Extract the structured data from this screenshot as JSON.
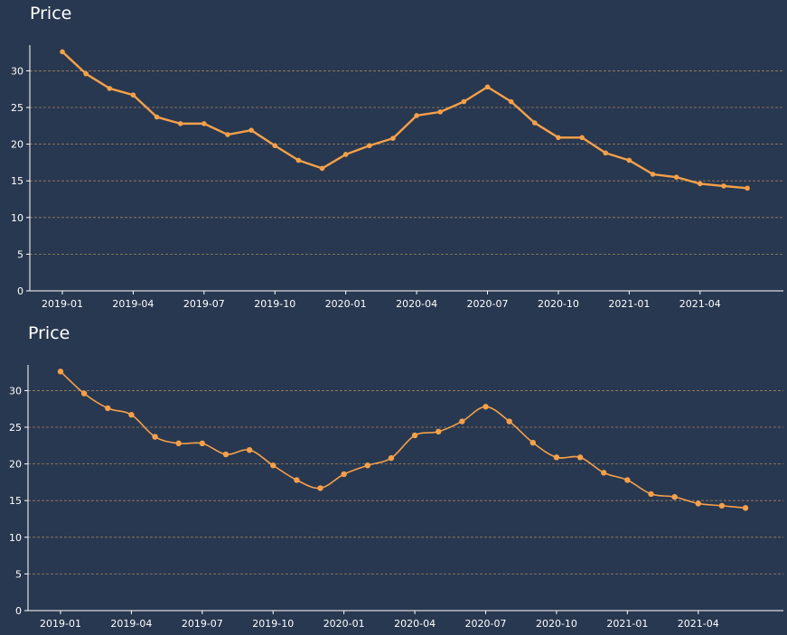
{
  "chart_data": [
    {
      "type": "line",
      "title": "Price",
      "curve": "linear",
      "series": [
        {
          "name": "Price",
          "color": "#f5a04a",
          "x": [
            "2019-01",
            "2019-02",
            "2019-03",
            "2019-04",
            "2019-05",
            "2019-06",
            "2019-07",
            "2019-08",
            "2019-09",
            "2019-10",
            "2019-11",
            "2019-12",
            "2020-01",
            "2020-02",
            "2020-03",
            "2020-04",
            "2020-05",
            "2020-06",
            "2020-07",
            "2020-08",
            "2020-09",
            "2020-10",
            "2020-11",
            "2020-12",
            "2021-01",
            "2021-02",
            "2021-03",
            "2021-04",
            "2021-05",
            "2021-06"
          ],
          "values": [
            32.6,
            29.6,
            27.6,
            26.7,
            23.7,
            22.8,
            22.8,
            21.3,
            21.9,
            19.8,
            17.8,
            16.7,
            18.6,
            19.8,
            20.8,
            23.9,
            24.4,
            25.8,
            27.8,
            25.8,
            22.9,
            20.9,
            20.9,
            18.8,
            17.8,
            15.9,
            15.5,
            14.6,
            14.3,
            14.0
          ]
        }
      ],
      "xticks": [
        "2019-01",
        "2019-04",
        "2019-07",
        "2019-10",
        "2020-01",
        "2020-04",
        "2020-07",
        "2020-10",
        "2021-01",
        "2021-04"
      ],
      "yticks": [
        0,
        5,
        10,
        15,
        20,
        25,
        30
      ],
      "ylim": [
        0,
        33.5
      ],
      "grid": "horizontal-dashed",
      "xlabel": "",
      "ylabel": ""
    },
    {
      "type": "line",
      "title": "Price",
      "curve": "smooth",
      "series": [
        {
          "name": "Price",
          "color": "#f5a04a",
          "x": [
            "2019-01",
            "2019-02",
            "2019-03",
            "2019-04",
            "2019-05",
            "2019-06",
            "2019-07",
            "2019-08",
            "2019-09",
            "2019-10",
            "2019-11",
            "2019-12",
            "2020-01",
            "2020-02",
            "2020-03",
            "2020-04",
            "2020-05",
            "2020-06",
            "2020-07",
            "2020-08",
            "2020-09",
            "2020-10",
            "2020-11",
            "2020-12",
            "2021-01",
            "2021-02",
            "2021-03",
            "2021-04",
            "2021-05",
            "2021-06"
          ],
          "values": [
            32.6,
            29.6,
            27.6,
            26.7,
            23.7,
            22.8,
            22.8,
            21.3,
            21.9,
            19.8,
            17.8,
            16.7,
            18.6,
            19.8,
            20.8,
            23.9,
            24.4,
            25.8,
            27.8,
            25.8,
            22.9,
            20.9,
            20.9,
            18.8,
            17.8,
            15.9,
            15.5,
            14.6,
            14.3,
            14.0
          ]
        }
      ],
      "xticks": [
        "2019-01",
        "2019-04",
        "2019-07",
        "2019-10",
        "2020-01",
        "2020-04",
        "2020-07",
        "2020-10",
        "2021-01",
        "2021-04"
      ],
      "yticks": [
        0,
        5,
        10,
        15,
        20,
        25,
        30
      ],
      "ylim": [
        0,
        33.5
      ],
      "grid": "horizontal-dashed",
      "xlabel": "",
      "ylabel": ""
    }
  ]
}
